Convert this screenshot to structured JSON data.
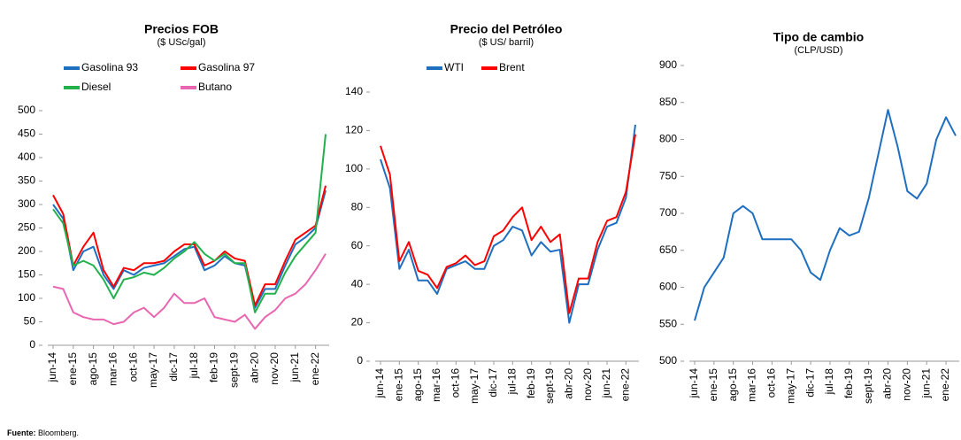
{
  "chart_data": [
    {
      "type": "line",
      "title": "Precios FOB",
      "subtitle": "($ USc/gal)",
      "categories": [
        "jun-14",
        null,
        "ene-15",
        null,
        "ago-15",
        null,
        "mar-16",
        null,
        "oct-16",
        null,
        "may-17",
        null,
        "dic-17",
        null,
        "jul-18",
        null,
        "feb-19",
        null,
        "sept-19",
        null,
        "abr-20",
        null,
        "nov-20",
        null,
        "jun-21",
        null,
        "ene-22",
        null
      ],
      "series": [
        {
          "name": "Gasolina 93",
          "color": "#1f6fc0",
          "values": [
            300,
            270,
            160,
            200,
            210,
            150,
            120,
            160,
            150,
            165,
            170,
            175,
            190,
            205,
            210,
            160,
            170,
            190,
            175,
            170,
            80,
            120,
            120,
            170,
            215,
            230,
            250,
            330
          ]
        },
        {
          "name": "Gasolina 97",
          "color": "#ff0000",
          "values": [
            320,
            280,
            170,
            210,
            240,
            160,
            125,
            165,
            160,
            175,
            175,
            180,
            200,
            215,
            215,
            170,
            180,
            200,
            185,
            180,
            85,
            130,
            130,
            180,
            225,
            240,
            255,
            340
          ]
        },
        {
          "name": "Diesel",
          "color": "#22b14c",
          "values": [
            290,
            260,
            170,
            180,
            170,
            140,
            100,
            140,
            145,
            155,
            150,
            165,
            185,
            200,
            220,
            195,
            180,
            195,
            175,
            175,
            70,
            110,
            110,
            155,
            190,
            215,
            240,
            450
          ]
        },
        {
          "name": "Butano",
          "color": "#e966b0",
          "values": [
            125,
            120,
            70,
            60,
            55,
            55,
            45,
            50,
            70,
            80,
            60,
            80,
            110,
            90,
            90,
            100,
            60,
            55,
            50,
            65,
            35,
            60,
            75,
            100,
            110,
            130,
            160,
            195
          ]
        }
      ],
      "ylim": [
        0,
        500
      ],
      "yticks": [
        0,
        50,
        100,
        150,
        200,
        250,
        300,
        350,
        400,
        450,
        500
      ]
    },
    {
      "type": "line",
      "title": "Precio del Petróleo",
      "subtitle": "($ US/ barril)",
      "categories": [
        "jun-14",
        null,
        "ene-15",
        null,
        "ago-15",
        null,
        "mar-16",
        null,
        "oct-16",
        null,
        "may-17",
        null,
        "dic-17",
        null,
        "jul-18",
        null,
        "feb-19",
        null,
        "sept-19",
        null,
        "abr-20",
        null,
        "nov-20",
        null,
        "jun-21",
        null,
        "ene-22",
        null
      ],
      "series": [
        {
          "name": "WTI",
          "color": "#1f6fc0",
          "values": [
            105,
            90,
            48,
            58,
            42,
            42,
            35,
            48,
            50,
            52,
            48,
            48,
            60,
            63,
            70,
            68,
            55,
            62,
            57,
            58,
            20,
            40,
            40,
            58,
            70,
            72,
            85,
            123
          ]
        },
        {
          "name": "Brent",
          "color": "#ff0000",
          "values": [
            112,
            97,
            52,
            62,
            47,
            45,
            38,
            49,
            51,
            55,
            50,
            52,
            65,
            68,
            75,
            80,
            63,
            70,
            62,
            66,
            25,
            43,
            43,
            62,
            73,
            75,
            88,
            118
          ]
        }
      ],
      "ylim": [
        0,
        140
      ],
      "yticks": [
        0,
        20,
        40,
        60,
        80,
        100,
        120,
        140
      ]
    },
    {
      "type": "line",
      "title": "Tipo de cambio",
      "subtitle": "(CLP/USD)",
      "categories": [
        "jun-14",
        null,
        "ene-15",
        null,
        "ago-15",
        null,
        "mar-16",
        null,
        "oct-16",
        null,
        "may-17",
        null,
        "dic-17",
        null,
        "jul-18",
        null,
        "feb-19",
        null,
        "sept-19",
        null,
        "abr-20",
        null,
        "nov-20",
        null,
        "jun-21",
        null,
        "ene-22",
        null
      ],
      "color": "#1f6fc0",
      "values": [
        555,
        600,
        620,
        640,
        700,
        710,
        700,
        665,
        665,
        665,
        665,
        650,
        620,
        610,
        650,
        680,
        670,
        675,
        720,
        780,
        840,
        790,
        730,
        720,
        740,
        800,
        830,
        805
      ],
      "ylim": [
        500,
        900
      ],
      "yticks": [
        500,
        550,
        600,
        650,
        700,
        750,
        800,
        850,
        900
      ]
    }
  ],
  "footer": {
    "label": "Fuente:",
    "text": "Bloomberg."
  }
}
